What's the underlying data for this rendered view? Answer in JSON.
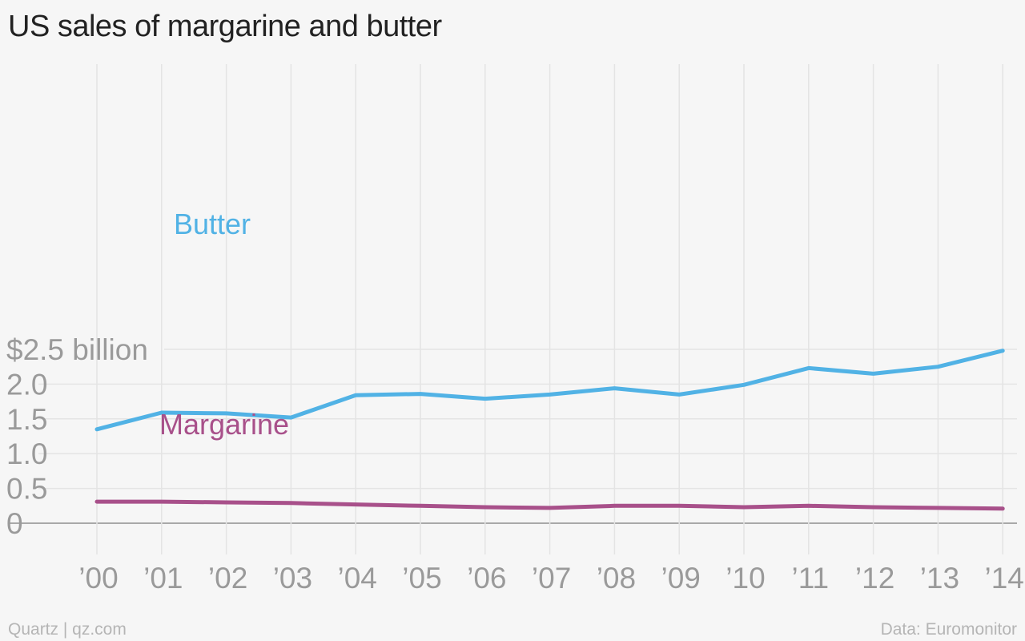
{
  "page": {
    "source_left": "Quartz | qz.com",
    "source_right": "Data: Euromonitor"
  },
  "chart_data": {
    "type": "line",
    "title": "US sales of margarine and butter",
    "xlabel": "",
    "ylabel": "",
    "x": [
      "’00",
      "’01",
      "’02",
      "’03",
      "’04",
      "’05",
      "’06",
      "’07",
      "’08",
      "’09",
      "’10",
      "’11",
      "’12",
      "’13",
      "’14"
    ],
    "y_ticks": [
      {
        "value": 0,
        "label": "0"
      },
      {
        "value": 0.5,
        "label": "0.5"
      },
      {
        "value": 1.0,
        "label": "1.0"
      },
      {
        "value": 1.5,
        "label": "1.5"
      },
      {
        "value": 2.0,
        "label": "2.0"
      },
      {
        "value": 2.5,
        "label": "$2.5 billion"
      }
    ],
    "ylim": [
      0,
      2.5
    ],
    "grid": true,
    "legend": "inline labels",
    "series": [
      {
        "name": "Butter",
        "color": "#51b2e5",
        "values": [
          1.35,
          1.59,
          1.58,
          1.52,
          1.84,
          1.86,
          1.79,
          1.85,
          1.94,
          1.85,
          1.99,
          2.23,
          2.15,
          2.25,
          2.48
        ]
      },
      {
        "name": "Margarine",
        "color": "#a8508a",
        "values": [
          0.31,
          0.31,
          0.3,
          0.29,
          0.27,
          0.25,
          0.23,
          0.22,
          0.25,
          0.25,
          0.23,
          0.25,
          0.23,
          0.22,
          0.21
        ]
      }
    ]
  }
}
